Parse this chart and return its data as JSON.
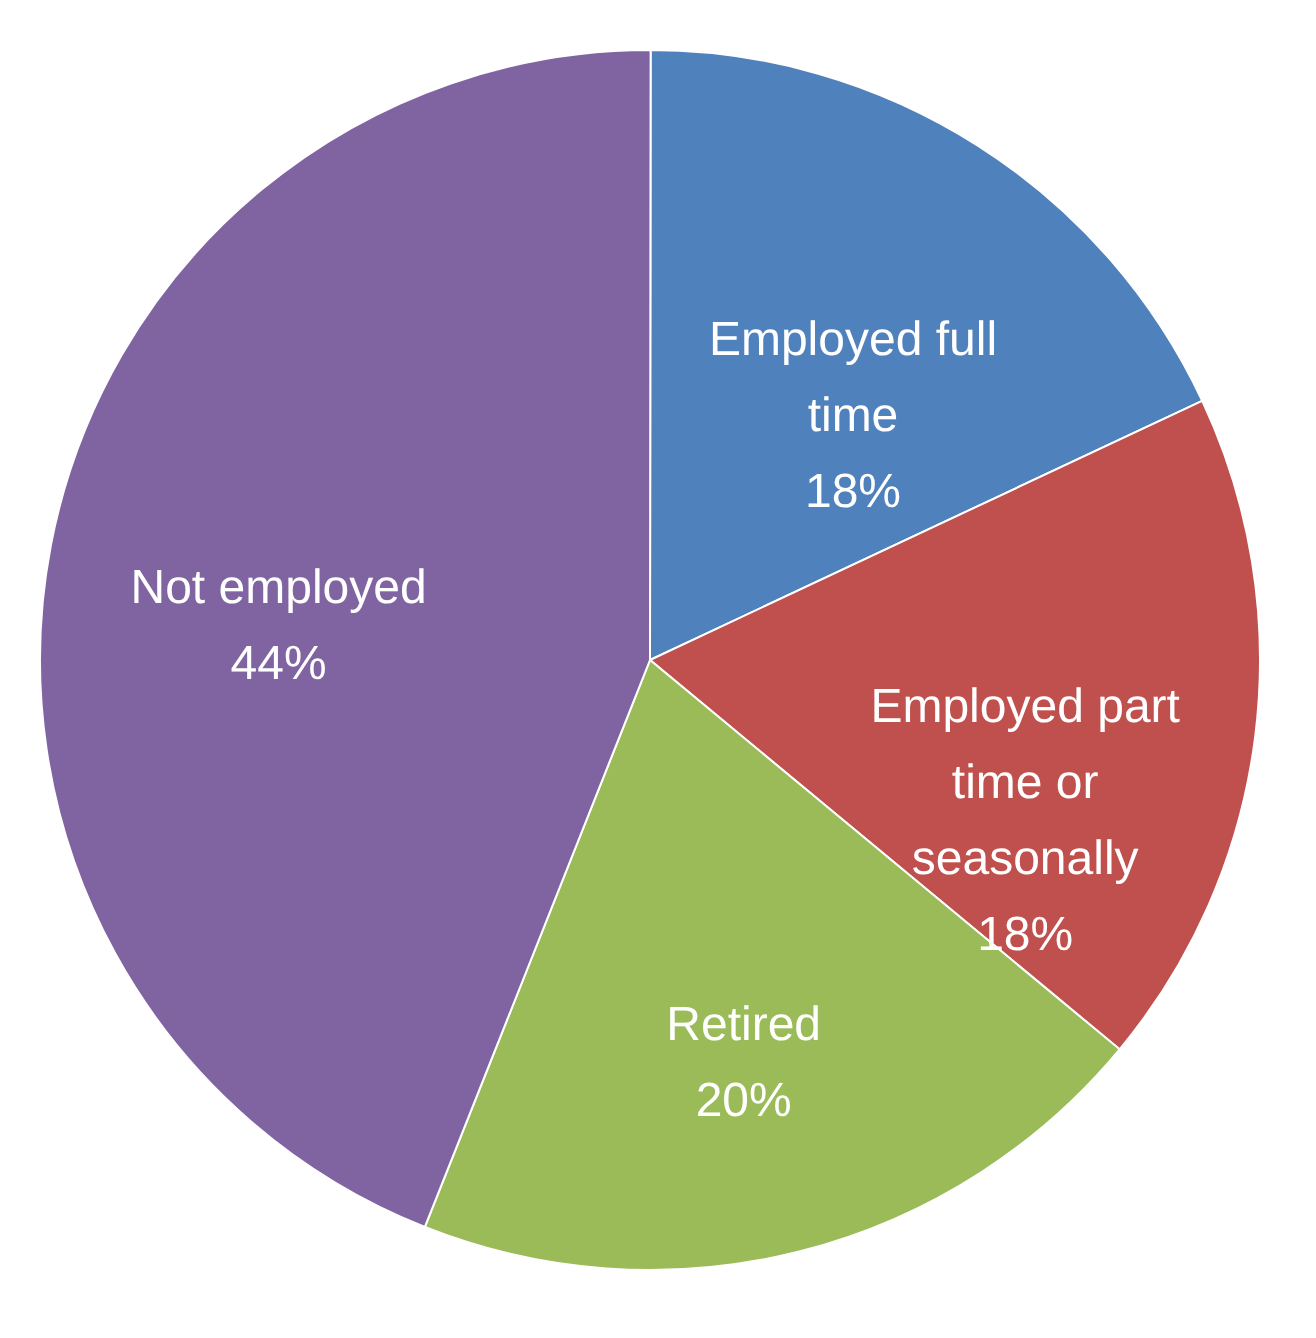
{
  "chart_data": {
    "type": "pie",
    "categories": [
      "Employed full time",
      "Employed part time or seasonally",
      "Retired",
      "Not employed"
    ],
    "values": [
      18,
      18,
      20,
      44
    ],
    "value_labels": [
      "18%",
      "18%",
      "20%",
      "44%"
    ],
    "colors": [
      "#4f81bd",
      "#c0504d",
      "#9bbb59",
      "#8064a2"
    ],
    "legend": false
  }
}
